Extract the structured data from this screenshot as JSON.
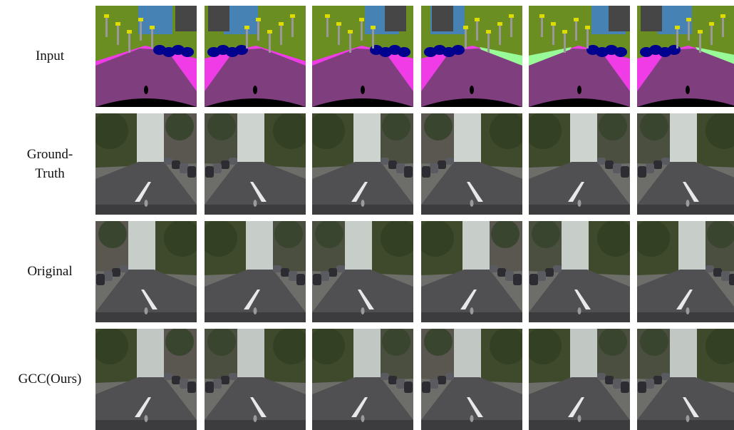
{
  "rows": [
    {
      "label_line1": "Input",
      "label_line2": "",
      "kind": "seg"
    },
    {
      "label_line1": "Ground-",
      "label_line2": "Truth",
      "kind": "photo"
    },
    {
      "label_line1": "Original",
      "label_line2": "",
      "kind": "photo"
    },
    {
      "label_line1": "GCC(Ours)",
      "label_line2": "",
      "kind": "photo"
    }
  ],
  "colors": {
    "road": "#7f3f7f",
    "sidewalk": "#f03ce6",
    "vegetation": "#6b8e23",
    "sky": "#4682b4",
    "building": "#464646",
    "car": "#00008e",
    "terrain": "#98fb98",
    "sign": "#dcdc00",
    "ego": "#000000"
  }
}
